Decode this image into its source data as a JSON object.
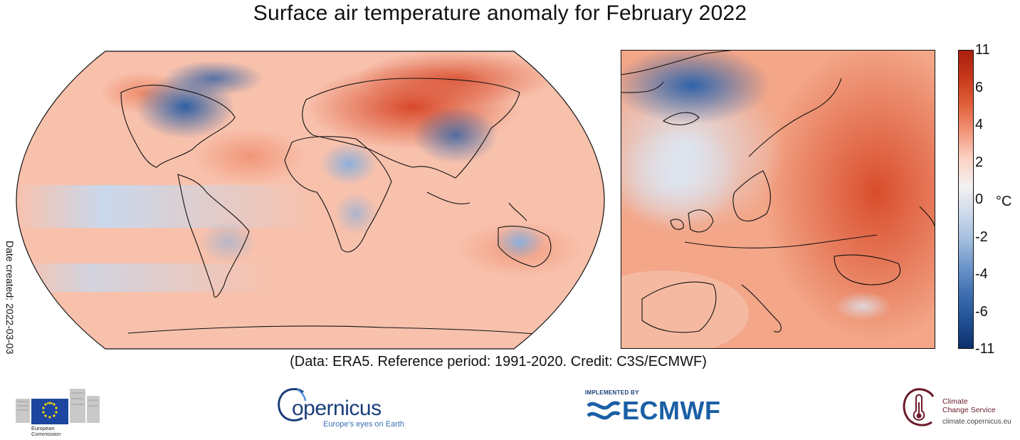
{
  "title": "Surface air temperature anomaly for February 2022",
  "credit": "(Data: ERA5.  Reference period: 1991-2020.  Credit: C3S/ECMWF)",
  "date_created": "Date created: 2022-03-03",
  "colorbar": {
    "unit": "°C",
    "ticks": [
      "11",
      "6",
      "4",
      "2",
      "0",
      "-2",
      "-4",
      "-6",
      "-11"
    ],
    "colors_top_to_bottom": [
      "#a8200f",
      "#c8381a",
      "#e0603a",
      "#f3957a",
      "#fbd2c4",
      "#f4f1f0",
      "#cfdbeb",
      "#a3bedf",
      "#6b95c9",
      "#3f6eb0",
      "#1f4f92",
      "#0d2f6b"
    ]
  },
  "maps": {
    "world": {
      "projection": "robinson",
      "dominant_anomaly": "warm"
    },
    "europe": {
      "region": "Europe",
      "dominant_anomaly": "warm"
    }
  },
  "logos": {
    "european_commission": {
      "line1": "European",
      "line2": "Commission"
    },
    "copernicus": {
      "word": "opernicus",
      "tagline": "Europe's eyes on Earth"
    },
    "ecmwf": {
      "tag": "IMPLEMENTED BY",
      "word": "ECMWF"
    },
    "ccs": {
      "line1": "Climate",
      "line2": "Change Service",
      "url": "climate.copernicus.eu"
    }
  }
}
